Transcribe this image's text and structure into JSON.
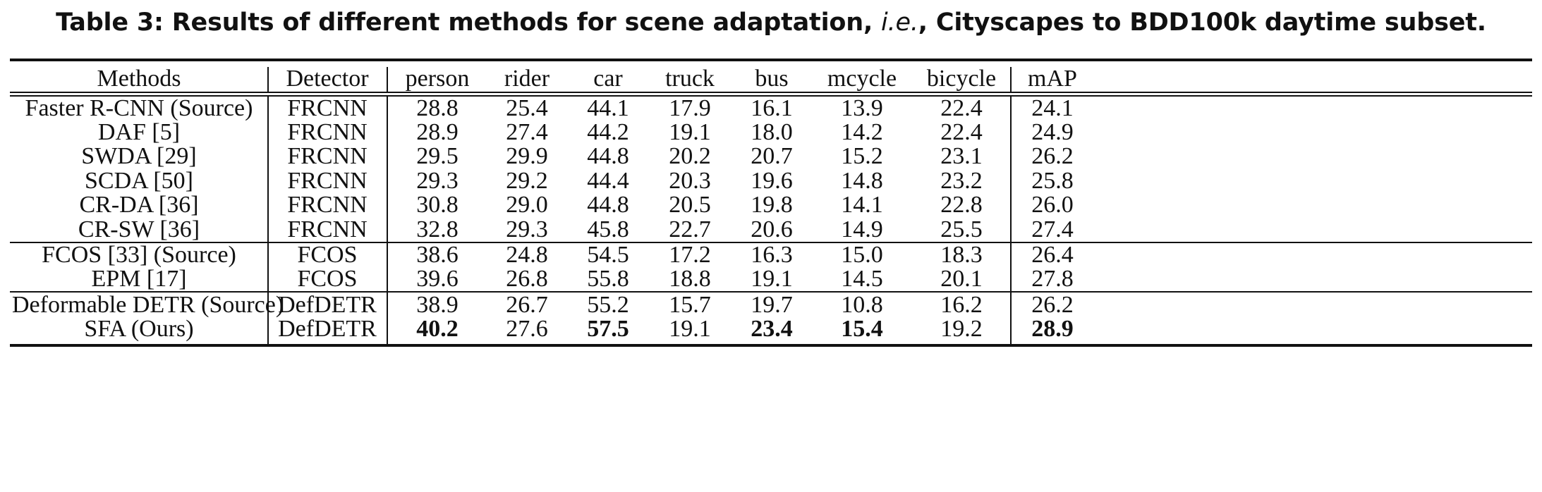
{
  "caption": {
    "prefix": "Table 3: Results of different methods for scene adaptation, ",
    "ie": "i.e.",
    "suffix": ", Cityscapes to BDD100k daytime subset."
  },
  "headers": [
    "Methods",
    "Detector",
    "person",
    "rider",
    "car",
    "truck",
    "bus",
    "mcycle",
    "bicycle",
    "mAP"
  ],
  "rows": [
    {
      "cells": [
        "Faster R-CNN (Source)",
        "FRCNN",
        "28.8",
        "25.4",
        "44.1",
        "17.9",
        "16.1",
        "13.9",
        "22.4",
        "24.1"
      ],
      "bold": []
    },
    {
      "cells": [
        "DAF [5]",
        "FRCNN",
        "28.9",
        "27.4",
        "44.2",
        "19.1",
        "18.0",
        "14.2",
        "22.4",
        "24.9"
      ],
      "bold": []
    },
    {
      "cells": [
        "SWDA [29]",
        "FRCNN",
        "29.5",
        "29.9",
        "44.8",
        "20.2",
        "20.7",
        "15.2",
        "23.1",
        "26.2"
      ],
      "bold": []
    },
    {
      "cells": [
        "SCDA [50]",
        "FRCNN",
        "29.3",
        "29.2",
        "44.4",
        "20.3",
        "19.6",
        "14.8",
        "23.2",
        "25.8"
      ],
      "bold": []
    },
    {
      "cells": [
        "CR-DA [36]",
        "FRCNN",
        "30.8",
        "29.0",
        "44.8",
        "20.5",
        "19.8",
        "14.1",
        "22.8",
        "26.0"
      ],
      "bold": []
    },
    {
      "cells": [
        "CR-SW [36]",
        "FRCNN",
        "32.8",
        "29.3",
        "45.8",
        "22.7",
        "20.6",
        "14.9",
        "25.5",
        "27.4"
      ],
      "bold": []
    },
    {
      "cells": [
        "FCOS [33] (Source)",
        "FCOS",
        "38.6",
        "24.8",
        "54.5",
        "17.2",
        "16.3",
        "15.0",
        "18.3",
        "26.4"
      ],
      "bold": []
    },
    {
      "cells": [
        "EPM [17]",
        "FCOS",
        "39.6",
        "26.8",
        "55.8",
        "18.8",
        "19.1",
        "14.5",
        "20.1",
        "27.8"
      ],
      "bold": []
    },
    {
      "cells": [
        "Deformable DETR (Source)",
        "DefDETR",
        "38.9",
        "26.7",
        "55.2",
        "15.7",
        "19.7",
        "10.8",
        "16.2",
        "26.2"
      ],
      "bold": []
    },
    {
      "cells": [
        "SFA (Ours)",
        "DefDETR",
        "40.2",
        "27.6",
        "57.5",
        "19.1",
        "23.4",
        "15.4",
        "19.2",
        "28.9"
      ],
      "bold": [
        2,
        4,
        6,
        7,
        9
      ]
    }
  ]
}
